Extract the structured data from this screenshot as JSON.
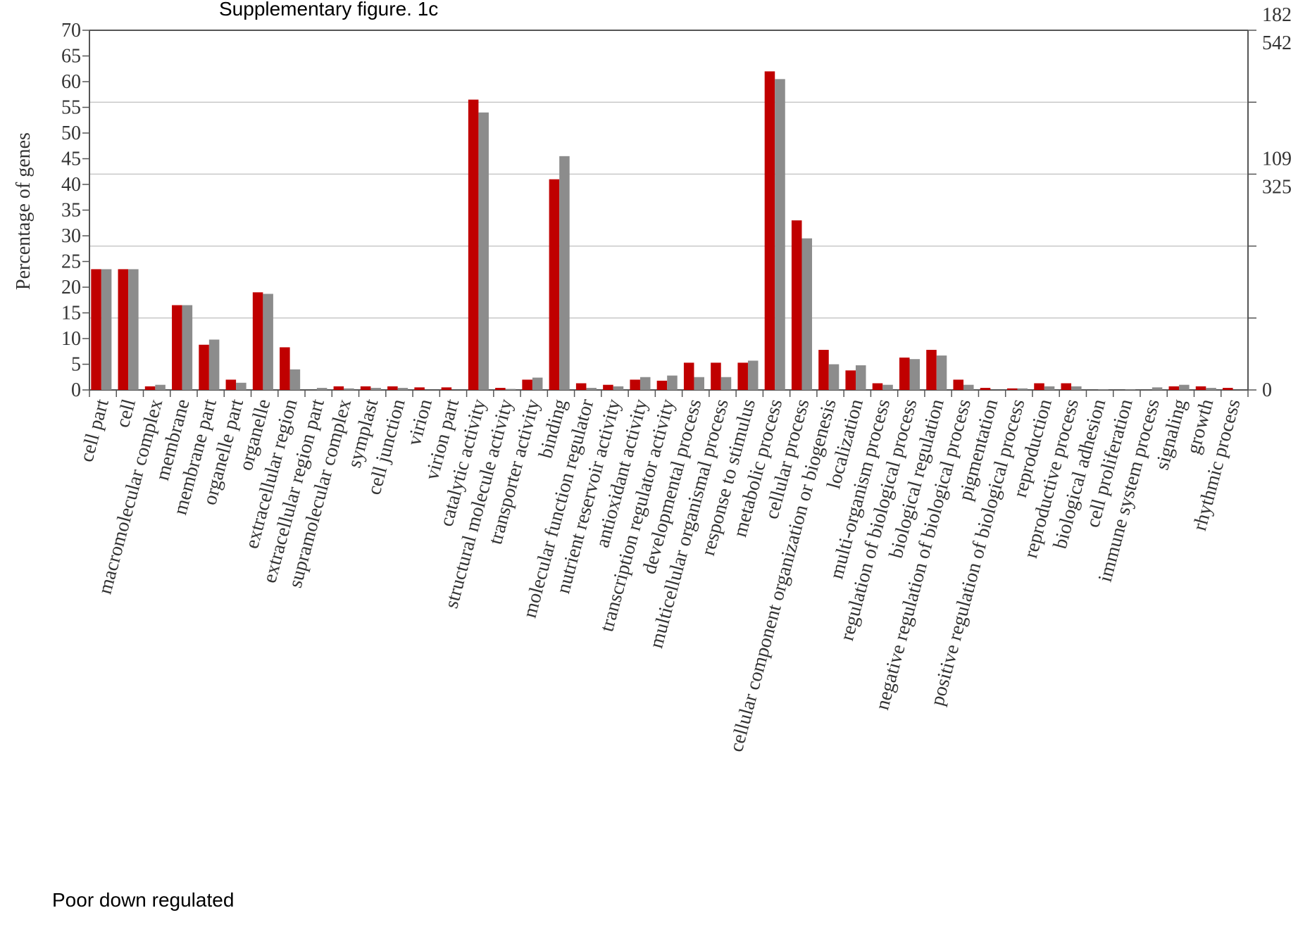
{
  "chart_data": {
    "type": "bar",
    "title": "Supplementary figure. 1c",
    "subtitle": "Poor down regulated",
    "y_label": "Percentage of genes",
    "categories": [
      "cell part",
      "cell",
      "macromolecular complex",
      "membrane",
      "membrane part",
      "organelle part",
      "organelle",
      "extracellular region",
      "extracellular region part",
      "supramolecular complex",
      "symplast",
      "cell junction",
      "virion",
      "virion part",
      "catalytic activity",
      "structural molecule activity",
      "transporter activity",
      "binding",
      "molecular function regulator",
      "nutrient reservoir activity",
      "antioxidant activity",
      "transcription regulator activity",
      "developmental process",
      "multicellular organismal process",
      "response to stimulus",
      "metabolic process",
      "cellular process",
      "cellular component organization or biogenesis",
      "localization",
      "multi-organism process",
      "regulation of biological process",
      "biological regulation",
      "negative regulation of biological process",
      "pigmentation",
      "positive regulation of biological process",
      "reproduction",
      "reproductive process",
      "biological adhesion",
      "cell proliferation",
      "immune system process",
      "signaling",
      "growth",
      "rhythmic process"
    ],
    "series": [
      {
        "color": "#c00000",
        "values": [
          23.5,
          23.5,
          0.7,
          16.5,
          8.8,
          2.0,
          19,
          8.3,
          0,
          0.7,
          0.7,
          0.7,
          0.5,
          0.5,
          56.5,
          0.4,
          2.0,
          41,
          1.3,
          1.0,
          2.0,
          1.8,
          5.3,
          5.3,
          5.3,
          62,
          33,
          7.8,
          3.8,
          1.3,
          6.3,
          7.8,
          2.0,
          0.4,
          0.3,
          1.3,
          1.3,
          0,
          0,
          0,
          0.7,
          0.7,
          0.4
        ]
      },
      {
        "color": "#8c8c8c",
        "values": [
          23.5,
          23.5,
          1.0,
          16.5,
          9.8,
          1.4,
          18.7,
          4.0,
          0.4,
          0.3,
          0.4,
          0.4,
          0,
          0,
          54,
          0.2,
          2.4,
          45.5,
          0.4,
          0.7,
          2.5,
          2.8,
          2.5,
          2.5,
          5.7,
          60.5,
          29.5,
          5.0,
          4.8,
          1.0,
          6.0,
          6.7,
          1.0,
          0,
          0.3,
          0.7,
          0.7,
          0.1,
          0.1,
          0.5,
          1.0,
          0.4,
          0
        ]
      }
    ],
    "ylim": [
      0,
      70
    ],
    "yticks": [
      0,
      5,
      10,
      15,
      20,
      25,
      30,
      35,
      40,
      45,
      50,
      55,
      60,
      65,
      70
    ],
    "y2lim": [
      0,
      70
    ],
    "y2ticks": [
      0,
      14,
      28,
      42,
      56,
      70
    ],
    "y2tick_labels": [
      {
        "value": 70,
        "label": "182"
      },
      {
        "value": 70,
        "label": "542"
      },
      {
        "value": 42,
        "label": "109"
      },
      {
        "value": 42,
        "label": "325"
      },
      {
        "value": 0,
        "label": "0"
      }
    ],
    "grid": true
  }
}
